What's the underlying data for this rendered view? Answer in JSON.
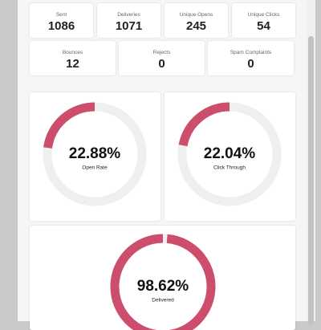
{
  "stats_row_1": [
    {
      "label": "Sent",
      "value": 1086
    },
    {
      "label": "Deliveries",
      "value": 1071
    },
    {
      "label": "Unique Opens",
      "value": 245
    },
    {
      "label": "Unique Clicks",
      "value": 54
    }
  ],
  "stats_row_2": [
    {
      "label": "Bounces",
      "value": 12
    },
    {
      "label": "Rejects",
      "value": 0
    },
    {
      "label": "Spam Complaints",
      "value": 0
    }
  ],
  "donuts": [
    {
      "label": "Open Rate",
      "value": 22.88,
      "value_label": "22.88%"
    },
    {
      "label": "Click Through",
      "value": 22.04,
      "value_label": "22.04%"
    },
    {
      "label": "Delivered",
      "value": 98.62,
      "value_label": "98.62%"
    }
  ],
  "color": "#cc4d6c",
  "track_color": "#efefef"
}
